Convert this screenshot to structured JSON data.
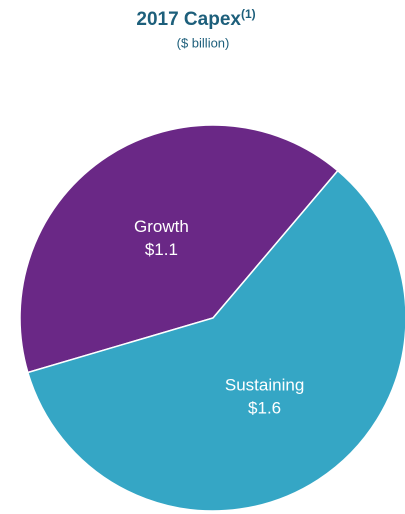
{
  "chart_data": {
    "type": "pie",
    "title": "2017 Capex",
    "title_note": "(1)",
    "subtitle": "($ billion)",
    "categories": [
      "Growth",
      "Sustaining"
    ],
    "values": [
      1.1,
      1.6
    ],
    "value_labels": [
      "$1.1",
      "$1.6"
    ],
    "colors": [
      "#6a2886",
      "#35a6c5"
    ]
  }
}
